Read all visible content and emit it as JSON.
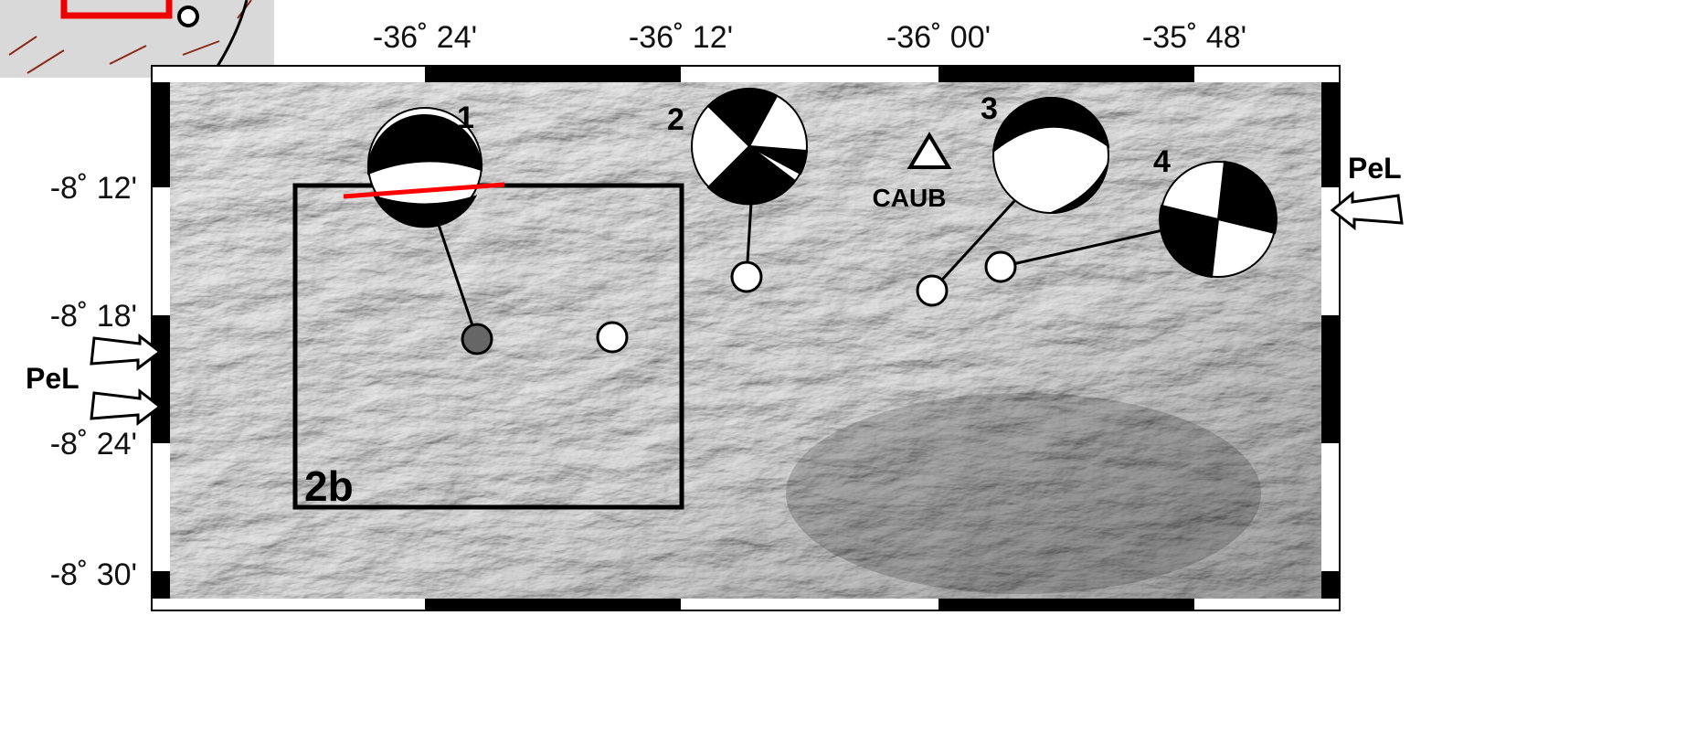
{
  "map": {
    "longitude_labels": [
      "-36˚ 24'",
      "-36˚ 12'",
      "-36˚ 00'",
      "-35˚ 48'"
    ],
    "latitude_labels": [
      "-8˚ 12'",
      "-8˚ 18'",
      "-8˚ 24'",
      "-8˚ 30'"
    ],
    "events": [
      "1",
      "2",
      "3",
      "4"
    ],
    "station": "CAUB",
    "arrow_labels": [
      "PeL",
      "PeL"
    ],
    "box_label": "2b"
  }
}
